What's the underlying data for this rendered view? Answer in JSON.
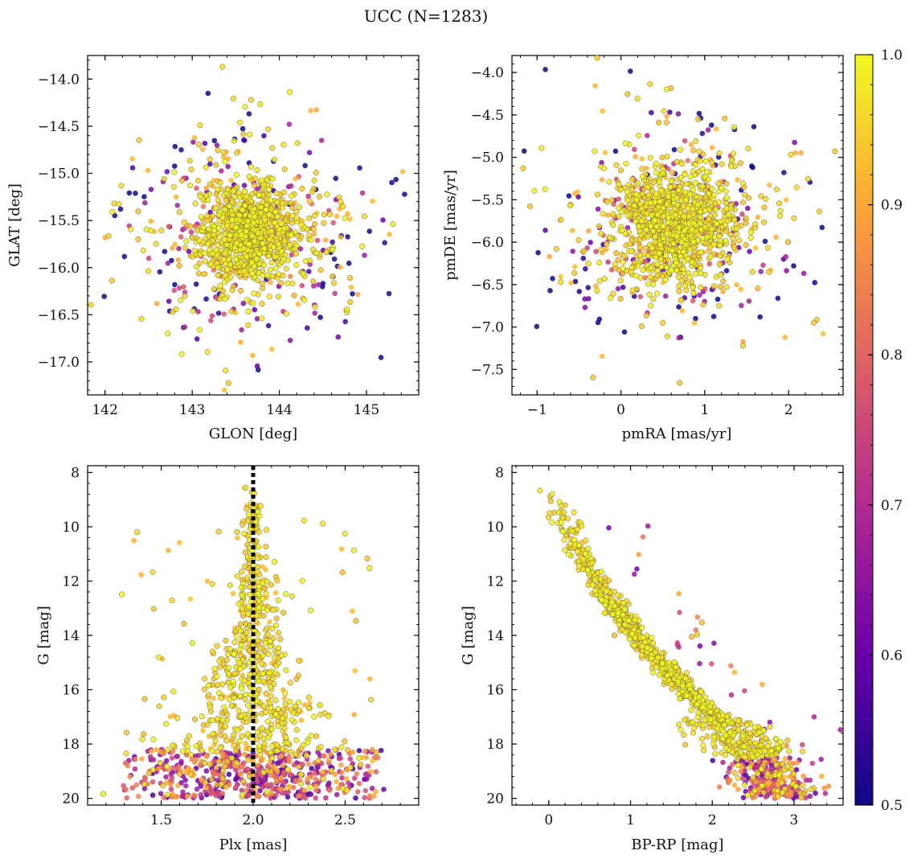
{
  "title": "UCC (N=1283)",
  "colors": {
    "point_edge": "#6b6b3a",
    "cmap": [
      "#0d0887",
      "#6a00a8",
      "#b12a90",
      "#e16462",
      "#fca636",
      "#f0f921"
    ],
    "plx_line": "#000000"
  },
  "chart_data": [
    {
      "type": "scatter",
      "name": "glon-glat",
      "xlabel": "GLON [deg]",
      "ylabel": "GLAT [deg]",
      "xlim": [
        141.8,
        145.6
      ],
      "ylim": [
        -17.35,
        -13.75
      ],
      "xticks": [
        142,
        143,
        144,
        145
      ],
      "xtick_labels": [
        "142",
        "143",
        "144",
        "145"
      ],
      "yticks": [
        -14.0,
        -14.5,
        -15.0,
        -15.5,
        -16.0,
        -16.5,
        -17.0
      ],
      "ytick_labels": [
        "−14.0",
        "−14.5",
        "−15.0",
        "−15.5",
        "−16.0",
        "−16.5",
        "−17.0"
      ],
      "y_inverted": false,
      "generated_points": {
        "count": 1283,
        "center_x": 143.65,
        "center_y": -15.65,
        "core_spread_x": 0.3,
        "core_spread_y": 0.28,
        "halo_spread_x": 0.75,
        "halo_spread_y": 0.6
      }
    },
    {
      "type": "scatter",
      "name": "pmra-pmde",
      "xlabel": "pmRA [mas/yr]",
      "ylabel": "pmDE [mas/yr]",
      "xlim": [
        -1.3,
        2.65
      ],
      "ylim": [
        -7.8,
        -3.8
      ],
      "xticks": [
        -1,
        0,
        1,
        2
      ],
      "xtick_labels": [
        "−1",
        "0",
        "1",
        "2"
      ],
      "yticks": [
        -4.0,
        -4.5,
        -5.0,
        -5.5,
        -6.0,
        -6.5,
        -7.0,
        -7.5
      ],
      "ytick_labels": [
        "−4.0",
        "−4.5",
        "−5.0",
        "−5.5",
        "−6.0",
        "−6.5",
        "−7.0",
        "−7.5"
      ],
      "y_inverted": false,
      "generated_points": {
        "count": 1283,
        "center_x": 0.65,
        "center_y": -5.8,
        "core_spread_x": 0.35,
        "core_spread_y": 0.32,
        "halo_spread_x": 0.75,
        "halo_spread_y": 0.65
      }
    },
    {
      "type": "scatter",
      "name": "plx-g",
      "xlabel": "Plx [mas]",
      "ylabel": "G [mag]",
      "xlim": [
        1.1,
        2.9
      ],
      "ylim": [
        20.25,
        7.75
      ],
      "xticks": [
        1.5,
        2.0,
        2.5
      ],
      "xtick_labels": [
        "1.5",
        "2.0",
        "2.5"
      ],
      "yticks": [
        8,
        10,
        12,
        14,
        16,
        18,
        20
      ],
      "ytick_labels": [
        "8",
        "10",
        "12",
        "14",
        "16",
        "18",
        "20"
      ],
      "y_inverted": true,
      "reference_line": {
        "x": 2.0,
        "style": "dotted"
      },
      "generated_points": {
        "count": 1283,
        "plx_center": 2.0,
        "g_min": 8.3,
        "g_max": 20.0
      }
    },
    {
      "type": "scatter",
      "name": "bprp-g",
      "xlabel": "BP-RP [mag]",
      "ylabel": "G [mag]",
      "xlim": [
        -0.45,
        3.6
      ],
      "ylim": [
        20.25,
        7.75
      ],
      "xticks": [
        0,
        1,
        2,
        3
      ],
      "xtick_labels": [
        "0",
        "1",
        "2",
        "3"
      ],
      "yticks": [
        8,
        10,
        12,
        14,
        16,
        18,
        20
      ],
      "ytick_labels": [
        "8",
        "10",
        "12",
        "14",
        "16",
        "18",
        "20"
      ],
      "y_inverted": true,
      "sequence": {
        "g": [
          8.3,
          10.5,
          12.5,
          14.5,
          16.5,
          18.2,
          19.8
        ],
        "bprp": [
          0.0,
          0.3,
          0.7,
          1.2,
          1.85,
          2.5,
          2.8
        ]
      },
      "generated_points": {
        "count": 1283
      }
    }
  ],
  "colorbar": {
    "range": [
      0.5,
      1.0
    ],
    "ticks": [
      0.5,
      0.6,
      0.7,
      0.8,
      0.9,
      1.0
    ],
    "tick_labels": [
      "0.5",
      "0.6",
      "0.7",
      "0.8",
      "0.9",
      "1.0"
    ]
  }
}
